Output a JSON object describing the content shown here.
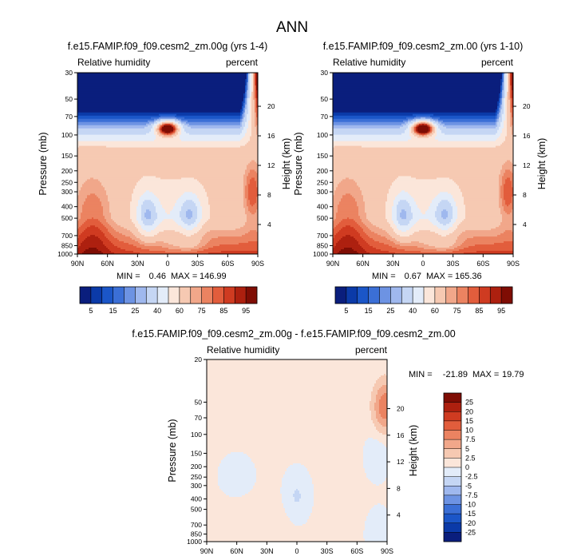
{
  "figure": {
    "title": "ANN"
  },
  "colors": {
    "diverging": [
      "#0a1e7d",
      "#0b3aa8",
      "#1b56c8",
      "#3b6fd6",
      "#6d93e3",
      "#9fb8ee",
      "#c5d6f4",
      "#e3ecf9",
      "#fbe6da",
      "#f6c9b2",
      "#f1a78a",
      "#eb8361",
      "#e25d3c",
      "#cf3b21",
      "#ad200f",
      "#7f0d04"
    ]
  },
  "chart_data": [
    {
      "id": "rh-0g",
      "type": "heatmap",
      "title": "f.e15.FAMIP.f09_f09.cesm2_zm.00g (yrs 1-4)",
      "left_label": "Relative humidity",
      "right_label": "percent",
      "ylabel": "Pressure (mb)",
      "ylabel_right": "Height (km)",
      "x_ticks": [
        "90N",
        "60N",
        "30N",
        "0",
        "30S",
        "60S",
        "90S"
      ],
      "x_tick_values": [
        90,
        60,
        30,
        0,
        -30,
        -60,
        -90
      ],
      "y_ticks": [
        "30",
        "50",
        "70",
        "100",
        "150",
        "200",
        "250",
        "300",
        "400",
        "500",
        "700",
        "850",
        "1000"
      ],
      "y_tick_values": [
        30,
        50,
        70,
        100,
        150,
        200,
        250,
        300,
        400,
        500,
        700,
        850,
        1000
      ],
      "height_ticks": [
        "20",
        "16",
        "12",
        "8",
        "4"
      ],
      "height_tick_values": [
        20,
        16,
        12,
        8,
        4
      ],
      "xlim": [
        90,
        -90
      ],
      "ylim": [
        1000,
        30
      ],
      "stats": {
        "min_label": "MIN =",
        "min": "0.46",
        "max_label": "MAX =",
        "max": "146.99"
      },
      "colorbar_labels": [
        "5",
        "15",
        "25",
        "40",
        "60",
        "75",
        "85",
        "95"
      ],
      "colorbar_levels": [
        5,
        10,
        15,
        20,
        25,
        30,
        40,
        50,
        60,
        70,
        75,
        80,
        85,
        90,
        95
      ]
    },
    {
      "id": "rh-00",
      "type": "heatmap",
      "title": "f.e15.FAMIP.f09_f09.cesm2_zm.00 (yrs 1-10)",
      "left_label": "Relative humidity",
      "right_label": "percent",
      "ylabel": "Pressure (mb)",
      "ylabel_right": "Height (km)",
      "x_ticks": [
        "90N",
        "60N",
        "30N",
        "0",
        "30S",
        "60S",
        "90S"
      ],
      "x_tick_values": [
        90,
        60,
        30,
        0,
        -30,
        -60,
        -90
      ],
      "y_ticks": [
        "30",
        "50",
        "70",
        "100",
        "150",
        "200",
        "250",
        "300",
        "400",
        "500",
        "700",
        "850",
        "1000"
      ],
      "y_tick_values": [
        30,
        50,
        70,
        100,
        150,
        200,
        250,
        300,
        400,
        500,
        700,
        850,
        1000
      ],
      "height_ticks": [
        "20",
        "16",
        "12",
        "8",
        "4"
      ],
      "height_tick_values": [
        20,
        16,
        12,
        8,
        4
      ],
      "xlim": [
        90,
        -90
      ],
      "ylim": [
        1000,
        30
      ],
      "stats": {
        "min_label": "MIN =",
        "min": "0.67",
        "max_label": "MAX =",
        "max": "165.36"
      },
      "colorbar_labels": [
        "5",
        "15",
        "25",
        "40",
        "60",
        "75",
        "85",
        "95"
      ],
      "colorbar_levels": [
        5,
        10,
        15,
        20,
        25,
        30,
        40,
        50,
        60,
        70,
        75,
        80,
        85,
        90,
        95
      ]
    },
    {
      "id": "rh-diff",
      "type": "heatmap",
      "title": "f.e15.FAMIP.f09_f09.cesm2_zm.00g - f.e15.FAMIP.f09_f09.cesm2_zm.00",
      "left_label": "Relative humidity",
      "right_label": "percent",
      "ylabel": "Pressure (mb)",
      "ylabel_right": "Height (km)",
      "x_ticks": [
        "90N",
        "60N",
        "30N",
        "0",
        "30S",
        "60S",
        "90S"
      ],
      "x_tick_values": [
        90,
        60,
        30,
        0,
        -30,
        -60,
        -90
      ],
      "y_ticks": [
        "20",
        "50",
        "70",
        "100",
        "150",
        "200",
        "250",
        "300",
        "400",
        "500",
        "700",
        "850",
        "1000"
      ],
      "y_tick_values": [
        20,
        50,
        70,
        100,
        150,
        200,
        250,
        300,
        400,
        500,
        700,
        850,
        1000
      ],
      "height_ticks": [
        "20",
        "16",
        "12",
        "8",
        "4"
      ],
      "height_tick_values": [
        20,
        16,
        12,
        8,
        4
      ],
      "xlim": [
        90,
        -90
      ],
      "ylim": [
        1000,
        20
      ],
      "stats": {
        "min_label": "MIN =",
        "min": "-21.89",
        "max_label": "MAX =",
        "max": "19.79"
      },
      "colorbar_labels": [
        "25",
        "20",
        "15",
        "10",
        "7.5",
        "5",
        "2.5",
        "0",
        "-2.5",
        "-5",
        "-7.5",
        "-10",
        "-15",
        "-20",
        "-25"
      ],
      "colorbar_levels": [
        25,
        20,
        15,
        10,
        7.5,
        5,
        2.5,
        0,
        -2.5,
        -5,
        -7.5,
        -10,
        -15,
        -20,
        -25
      ]
    }
  ]
}
